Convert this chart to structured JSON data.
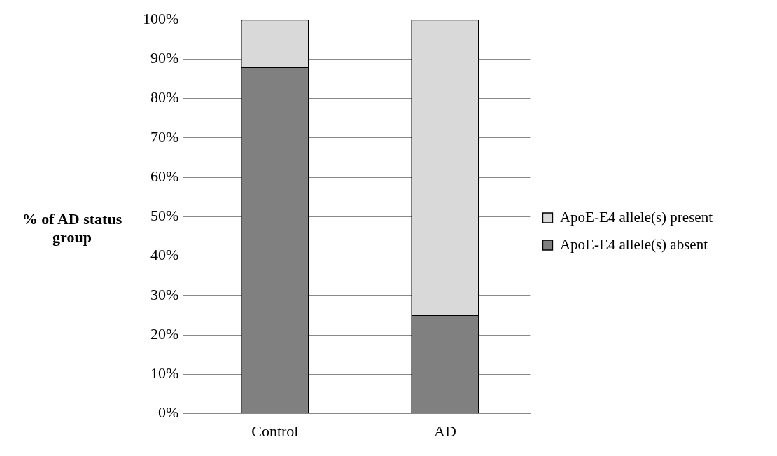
{
  "chart_data": {
    "type": "bar",
    "stacked": true,
    "ylabel": "% of AD status group",
    "categories": [
      "Control",
      "AD"
    ],
    "series": [
      {
        "name": "ApoE-E4 allele(s) absent",
        "color": "#808080",
        "values": [
          88,
          25
        ]
      },
      {
        "name": "ApoE-E4 allele(s) present",
        "color": "#d9d9d9",
        "values": [
          12,
          75
        ]
      }
    ],
    "ylim": [
      0,
      100
    ],
    "yticks": [
      {
        "value": 0,
        "label": "0%"
      },
      {
        "value": 10,
        "label": "10%"
      },
      {
        "value": 20,
        "label": "20%"
      },
      {
        "value": 30,
        "label": "30%"
      },
      {
        "value": 40,
        "label": "40%"
      },
      {
        "value": 50,
        "label": "50%"
      },
      {
        "value": 60,
        "label": "60%"
      },
      {
        "value": 70,
        "label": "70%"
      },
      {
        "value": 80,
        "label": "80%"
      },
      {
        "value": 90,
        "label": "90%"
      },
      {
        "value": 100,
        "label": "100%"
      }
    ],
    "grid": "y",
    "legend": "right"
  }
}
